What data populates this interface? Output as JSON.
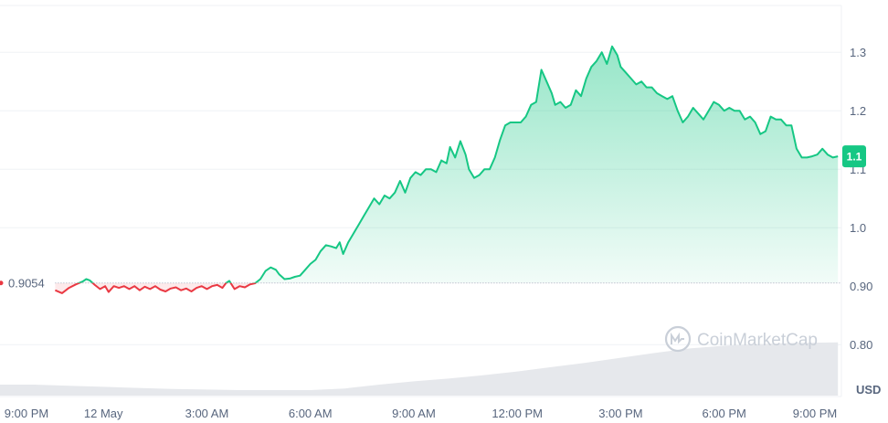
{
  "watermark": "CoinMarketCap",
  "chart_data": {
    "type": "line",
    "y_unit": "USD",
    "y_ticks": [
      0.8,
      0.9,
      1.0,
      1.1,
      1.2,
      1.3
    ],
    "y_tick_labels": [
      "0.80",
      "0.90",
      "1.0",
      "1.1",
      "1.2",
      "1.3"
    ],
    "ylim": [
      0.73,
      1.38
    ],
    "x_tick_labels": [
      "9:00 PM",
      "12 May",
      "3:00 AM",
      "6:00 AM",
      "9:00 AM",
      "12:00 PM",
      "3:00 PM",
      "6:00 PM",
      "9:00 PM"
    ],
    "x_tick_hours": [
      0,
      3,
      6,
      9,
      12,
      15,
      18,
      21,
      24
    ],
    "xlim_hours": [
      0,
      24.4
    ],
    "reference_price": 0.9054,
    "reference_label": "0.9054",
    "current_price_label": "1.1",
    "colors": {
      "up": "#16c784",
      "down": "#ea3943",
      "grid": "#eff2f5",
      "volume": "#e6e8ec"
    },
    "series": [
      {
        "values": [
          [
            1.6,
            0.893
          ],
          [
            1.8,
            0.888
          ],
          [
            2.0,
            0.897
          ],
          [
            2.2,
            0.903
          ],
          [
            2.4,
            0.908
          ],
          [
            2.5,
            0.912
          ],
          [
            2.6,
            0.91
          ],
          [
            2.75,
            0.902
          ],
          [
            2.9,
            0.895
          ],
          [
            3.05,
            0.9
          ],
          [
            3.15,
            0.89
          ],
          [
            3.3,
            0.9
          ],
          [
            3.45,
            0.897
          ],
          [
            3.6,
            0.9
          ],
          [
            3.75,
            0.895
          ],
          [
            3.9,
            0.9
          ],
          [
            4.05,
            0.893
          ],
          [
            4.2,
            0.899
          ],
          [
            4.35,
            0.895
          ],
          [
            4.5,
            0.9
          ],
          [
            4.65,
            0.894
          ],
          [
            4.8,
            0.891
          ],
          [
            4.95,
            0.896
          ],
          [
            5.1,
            0.898
          ],
          [
            5.25,
            0.893
          ],
          [
            5.4,
            0.896
          ],
          [
            5.55,
            0.891
          ],
          [
            5.7,
            0.897
          ],
          [
            5.85,
            0.9
          ],
          [
            6.0,
            0.895
          ],
          [
            6.15,
            0.9
          ],
          [
            6.3,
            0.902
          ],
          [
            6.45,
            0.897
          ],
          [
            6.55,
            0.905
          ],
          [
            6.65,
            0.909
          ],
          [
            6.8,
            0.895
          ],
          [
            6.95,
            0.9
          ],
          [
            7.1,
            0.898
          ],
          [
            7.25,
            0.903
          ],
          [
            7.4,
            0.905
          ],
          [
            7.55,
            0.912
          ],
          [
            7.7,
            0.926
          ],
          [
            7.85,
            0.932
          ],
          [
            8.0,
            0.928
          ],
          [
            8.1,
            0.92
          ],
          [
            8.25,
            0.912
          ],
          [
            8.4,
            0.913
          ],
          [
            8.55,
            0.916
          ],
          [
            8.7,
            0.918
          ],
          [
            8.85,
            0.928
          ],
          [
            9.0,
            0.938
          ],
          [
            9.15,
            0.945
          ],
          [
            9.3,
            0.96
          ],
          [
            9.45,
            0.97
          ],
          [
            9.6,
            0.968
          ],
          [
            9.75,
            0.965
          ],
          [
            9.85,
            0.975
          ],
          [
            9.95,
            0.955
          ],
          [
            10.1,
            0.975
          ],
          [
            10.25,
            0.99
          ],
          [
            10.4,
            1.005
          ],
          [
            10.55,
            1.02
          ],
          [
            10.7,
            1.035
          ],
          [
            10.85,
            1.05
          ],
          [
            11.0,
            1.04
          ],
          [
            11.15,
            1.055
          ],
          [
            11.3,
            1.05
          ],
          [
            11.45,
            1.06
          ],
          [
            11.6,
            1.08
          ],
          [
            11.75,
            1.06
          ],
          [
            11.9,
            1.085
          ],
          [
            12.05,
            1.095
          ],
          [
            12.2,
            1.09
          ],
          [
            12.35,
            1.1
          ],
          [
            12.5,
            1.1
          ],
          [
            12.65,
            1.095
          ],
          [
            12.8,
            1.115
          ],
          [
            12.95,
            1.11
          ],
          [
            13.05,
            1.138
          ],
          [
            13.2,
            1.12
          ],
          [
            13.35,
            1.148
          ],
          [
            13.5,
            1.125
          ],
          [
            13.6,
            1.1
          ],
          [
            13.75,
            1.085
          ],
          [
            13.9,
            1.09
          ],
          [
            14.05,
            1.1
          ],
          [
            14.2,
            1.1
          ],
          [
            14.35,
            1.12
          ],
          [
            14.5,
            1.15
          ],
          [
            14.65,
            1.175
          ],
          [
            14.8,
            1.18
          ],
          [
            14.95,
            1.18
          ],
          [
            15.1,
            1.18
          ],
          [
            15.25,
            1.19
          ],
          [
            15.4,
            1.21
          ],
          [
            15.55,
            1.215
          ],
          [
            15.7,
            1.27
          ],
          [
            15.85,
            1.25
          ],
          [
            16.0,
            1.23
          ],
          [
            16.1,
            1.21
          ],
          [
            16.25,
            1.215
          ],
          [
            16.4,
            1.205
          ],
          [
            16.55,
            1.21
          ],
          [
            16.7,
            1.235
          ],
          [
            16.85,
            1.225
          ],
          [
            17.0,
            1.255
          ],
          [
            17.15,
            1.275
          ],
          [
            17.3,
            1.285
          ],
          [
            17.45,
            1.3
          ],
          [
            17.6,
            1.28
          ],
          [
            17.75,
            1.31
          ],
          [
            17.9,
            1.295
          ],
          [
            18.0,
            1.275
          ],
          [
            18.15,
            1.265
          ],
          [
            18.3,
            1.255
          ],
          [
            18.45,
            1.245
          ],
          [
            18.6,
            1.25
          ],
          [
            18.75,
            1.24
          ],
          [
            18.9,
            1.24
          ],
          [
            19.05,
            1.23
          ],
          [
            19.2,
            1.225
          ],
          [
            19.35,
            1.22
          ],
          [
            19.5,
            1.225
          ],
          [
            19.65,
            1.2
          ],
          [
            19.8,
            1.18
          ],
          [
            19.95,
            1.19
          ],
          [
            20.1,
            1.205
          ],
          [
            20.25,
            1.195
          ],
          [
            20.4,
            1.185
          ],
          [
            20.55,
            1.2
          ],
          [
            20.7,
            1.215
          ],
          [
            20.85,
            1.21
          ],
          [
            21.0,
            1.2
          ],
          [
            21.15,
            1.205
          ],
          [
            21.3,
            1.2
          ],
          [
            21.45,
            1.2
          ],
          [
            21.6,
            1.185
          ],
          [
            21.75,
            1.19
          ],
          [
            21.9,
            1.18
          ],
          [
            22.05,
            1.16
          ],
          [
            22.2,
            1.165
          ],
          [
            22.35,
            1.19
          ],
          [
            22.5,
            1.185
          ],
          [
            22.65,
            1.185
          ],
          [
            22.8,
            1.175
          ],
          [
            22.95,
            1.175
          ],
          [
            23.1,
            1.135
          ],
          [
            23.25,
            1.12
          ],
          [
            23.4,
            1.12
          ],
          [
            23.55,
            1.122
          ],
          [
            23.7,
            1.125
          ],
          [
            23.85,
            1.135
          ],
          [
            24.0,
            1.125
          ],
          [
            24.15,
            1.12
          ],
          [
            24.3,
            1.122
          ]
        ]
      }
    ],
    "volume": [
      [
        0,
        0.2
      ],
      [
        1,
        0.2
      ],
      [
        2,
        0.18
      ],
      [
        3,
        0.16
      ],
      [
        4,
        0.14
      ],
      [
        5,
        0.12
      ],
      [
        6,
        0.11
      ],
      [
        7,
        0.1
      ],
      [
        8,
        0.1
      ],
      [
        9,
        0.1
      ],
      [
        10,
        0.13
      ],
      [
        11,
        0.2
      ],
      [
        12,
        0.26
      ],
      [
        13,
        0.31
      ],
      [
        14,
        0.37
      ],
      [
        15,
        0.44
      ],
      [
        16,
        0.52
      ],
      [
        17,
        0.6
      ],
      [
        18,
        0.69
      ],
      [
        19,
        0.78
      ],
      [
        20,
        0.86
      ],
      [
        21,
        0.91
      ],
      [
        22,
        0.94
      ],
      [
        23,
        0.96
      ],
      [
        24.3,
        0.97
      ]
    ]
  }
}
